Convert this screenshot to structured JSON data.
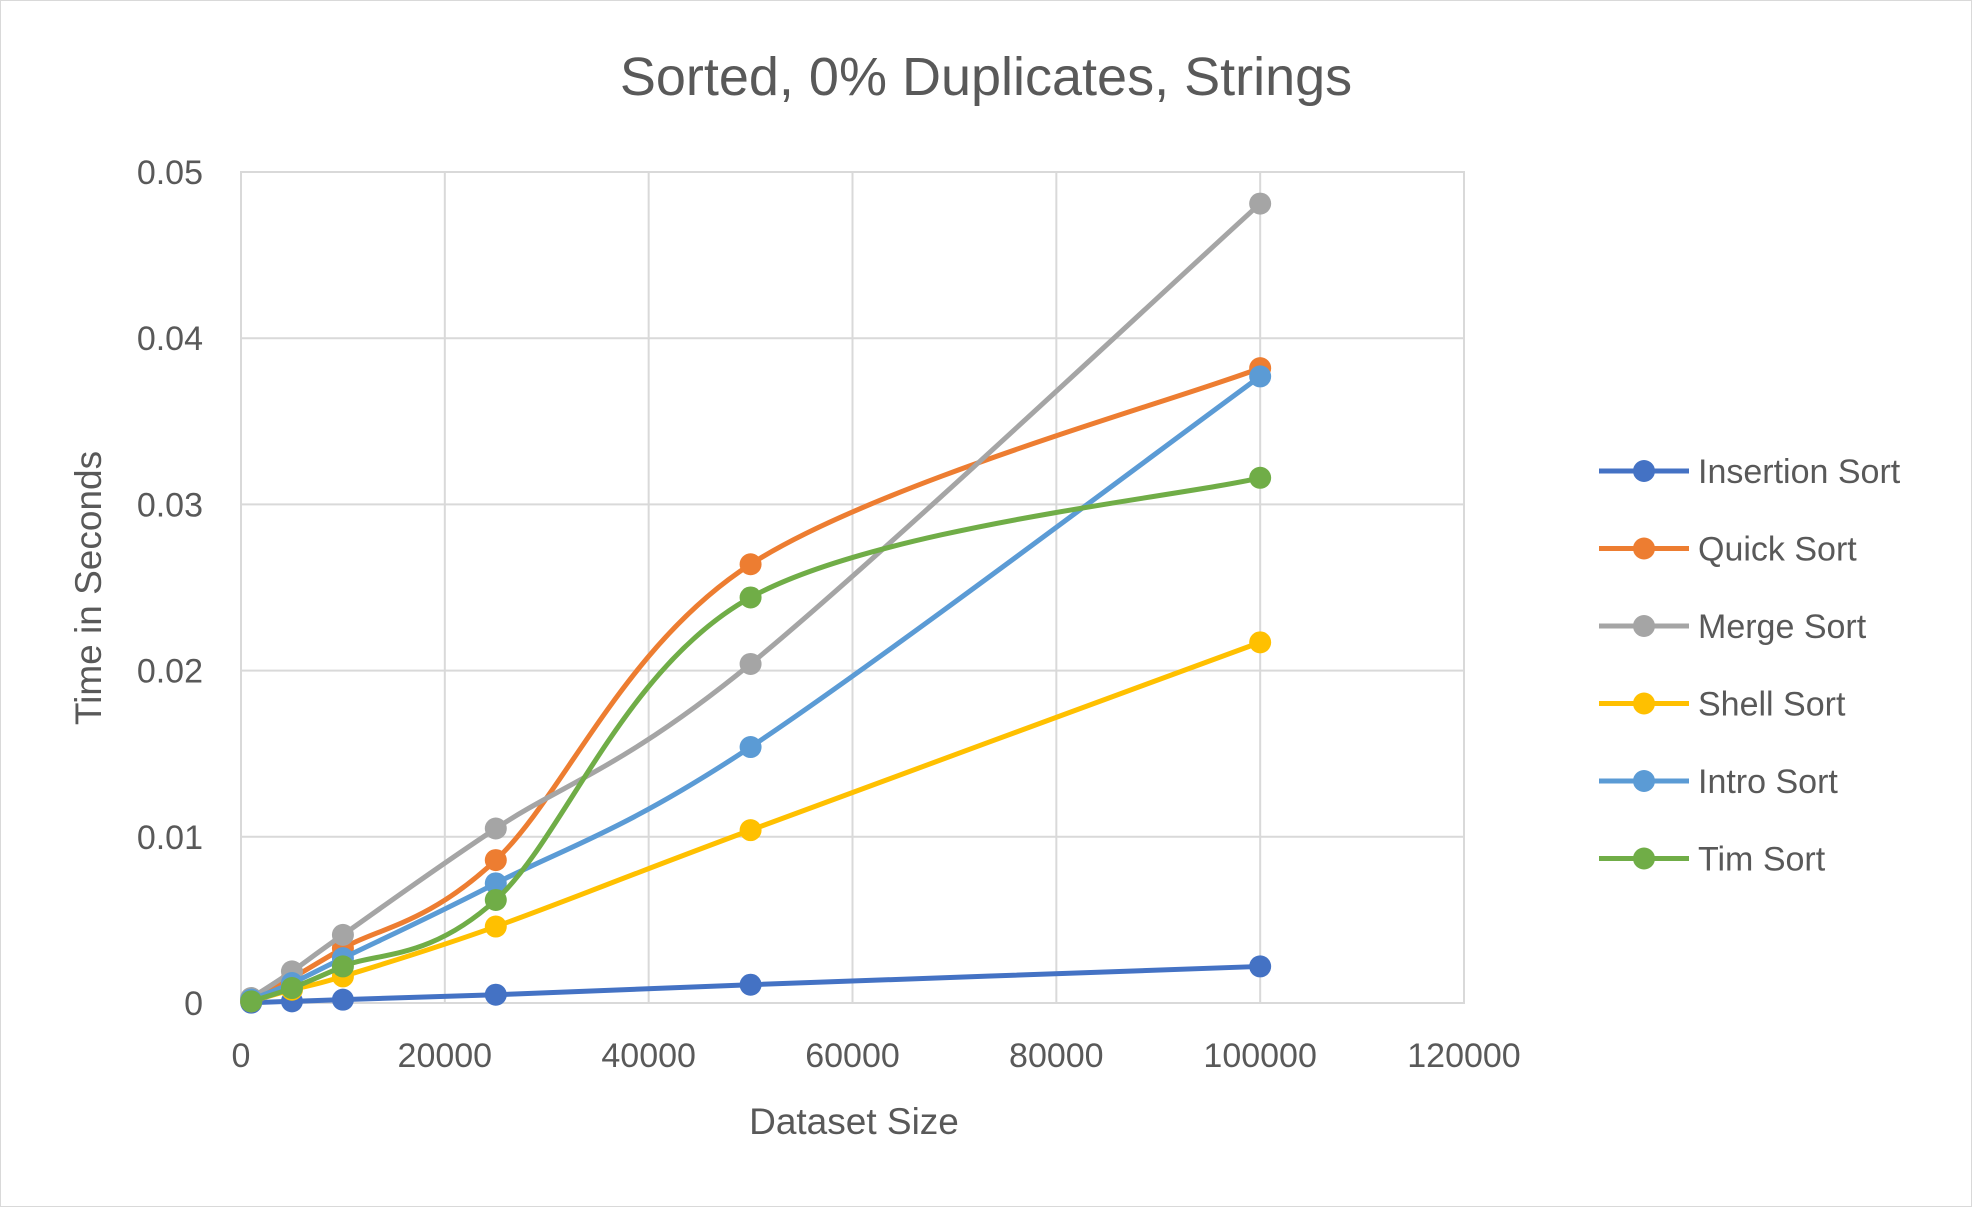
{
  "chart_data": {
    "type": "line",
    "title": "Sorted, 0% Duplicates, Strings",
    "xlabel": "Dataset Size",
    "ylabel": "Time in Seconds",
    "xlim": [
      0,
      120000
    ],
    "ylim": [
      0,
      0.05
    ],
    "xticks": [
      0,
      20000,
      40000,
      60000,
      80000,
      100000,
      120000
    ],
    "yticks": [
      0,
      0.01,
      0.02,
      0.03,
      0.04,
      0.05
    ],
    "xtick_labels": [
      "0",
      "20000",
      "40000",
      "60000",
      "80000",
      "100000",
      "120000"
    ],
    "ytick_labels": [
      "0",
      "0.01",
      "0.02",
      "0.03",
      "0.04",
      "0.05"
    ],
    "grid": true,
    "smooth": true,
    "legend": "right",
    "x": [
      1000,
      5000,
      10000,
      25000,
      50000,
      100000
    ],
    "series": [
      {
        "name": "Insertion Sort",
        "color": "#4472C4",
        "values": [
          2e-05,
          0.0001,
          0.0002,
          0.0005,
          0.0011,
          0.0022
        ]
      },
      {
        "name": "Quick Sort",
        "color": "#ED7D31",
        "values": [
          0.0002,
          0.0015,
          0.0033,
          0.0086,
          0.0264,
          0.0382
        ]
      },
      {
        "name": "Merge Sort",
        "color": "#A5A5A5",
        "values": [
          0.0003,
          0.0019,
          0.0041,
          0.0105,
          0.0204,
          0.0481
        ]
      },
      {
        "name": "Shell Sort",
        "color": "#FFC000",
        "values": [
          0.0001,
          0.0008,
          0.0016,
          0.0046,
          0.0104,
          0.0217
        ]
      },
      {
        "name": "Intro Sort",
        "color": "#5B9BD5",
        "values": [
          0.0002,
          0.0012,
          0.0027,
          0.0072,
          0.0154,
          0.0377
        ]
      },
      {
        "name": "Tim Sort",
        "color": "#70AD47",
        "values": [
          0.0001,
          0.0009,
          0.0022,
          0.0062,
          0.0244,
          0.0316
        ]
      }
    ]
  }
}
